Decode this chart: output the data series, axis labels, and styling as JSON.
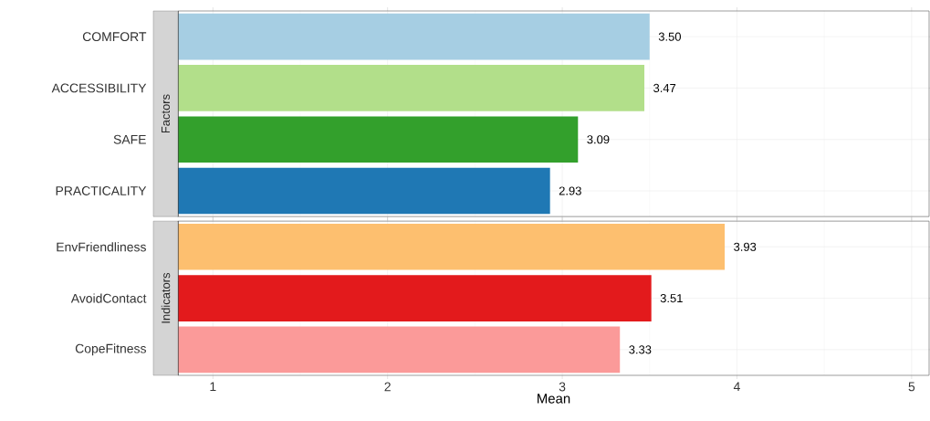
{
  "chart_data": [
    {
      "type": "bar",
      "orientation": "horizontal",
      "title": "Factors",
      "categories": [
        "COMFORT",
        "ACCESSIBILITY",
        "SAFE",
        "PRACTICALITY"
      ],
      "values": [
        3.5,
        3.47,
        3.09,
        2.93
      ],
      "value_labels": [
        "3.50",
        "3.47",
        "3.09",
        "2.93"
      ],
      "colors": [
        "#a6cee3",
        "#b2df8a",
        "#33a02c",
        "#1f78b4"
      ],
      "xlim": [
        0.8,
        5.1
      ],
      "xticks": [
        1,
        2,
        3,
        4,
        5
      ],
      "grid": true,
      "tick_labels": "y"
    },
    {
      "type": "bar",
      "orientation": "horizontal",
      "title": "Indicators",
      "xlabel": "Mean",
      "categories": [
        "EnvFriendliness",
        "AvoidContact",
        "CopeFitness"
      ],
      "values": [
        3.93,
        3.51,
        3.33
      ],
      "value_labels": [
        "3.93",
        "3.51",
        "3.33"
      ],
      "colors": [
        "#fdbf6f",
        "#e31a1c",
        "#fb9a99"
      ],
      "xlim": [
        0.8,
        5.1
      ],
      "xticks": [
        1,
        2,
        3,
        4,
        5
      ],
      "grid": true
    }
  ]
}
